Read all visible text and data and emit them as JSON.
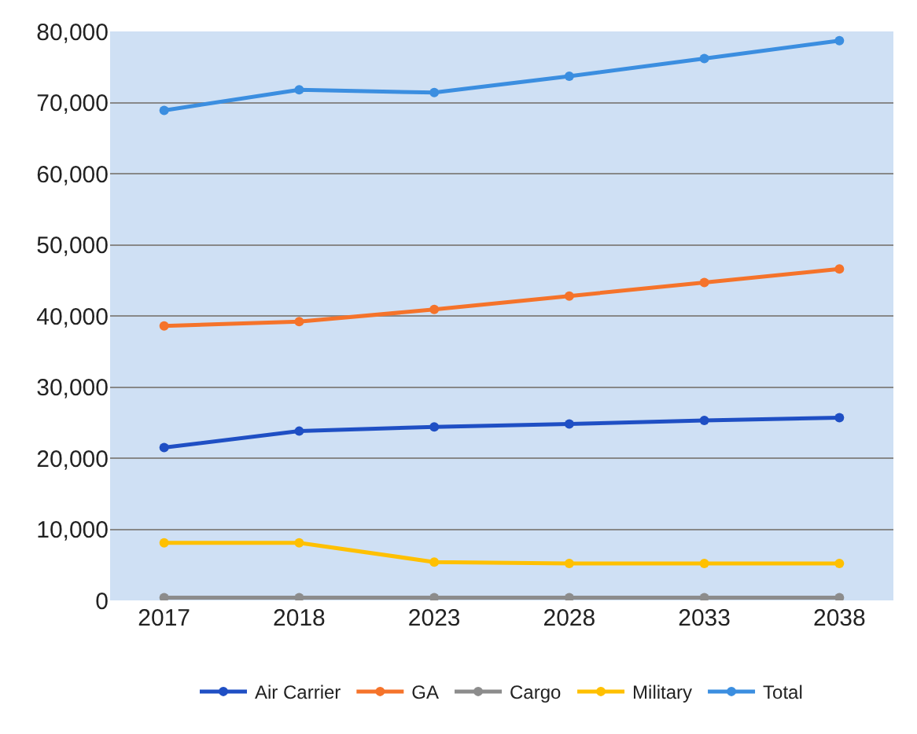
{
  "chart_data": {
    "type": "line",
    "categories": [
      "2017",
      "2018",
      "2023",
      "2028",
      "2033",
      "2038"
    ],
    "series": [
      {
        "name": "Air Carrier",
        "color": "#1f4fc4",
        "values": [
          21500,
          23800,
          24400,
          24800,
          25300,
          25700
        ]
      },
      {
        "name": "GA",
        "color": "#f5732a",
        "values": [
          38600,
          39200,
          40900,
          42800,
          44700,
          46600
        ]
      },
      {
        "name": "Cargo",
        "color": "#8c8c8c",
        "values": [
          400,
          400,
          400,
          400,
          400,
          400
        ]
      },
      {
        "name": "Military",
        "color": "#ffc000",
        "values": [
          8100,
          8100,
          5400,
          5200,
          5200,
          5200
        ]
      },
      {
        "name": "Total",
        "color": "#3b8ee0",
        "values": [
          68900,
          71800,
          71400,
          73700,
          76200,
          78700
        ]
      }
    ],
    "ylim": [
      0,
      80000
    ],
    "yticks": [
      {
        "value": 0,
        "label": "0"
      },
      {
        "value": 10000,
        "label": "10,000"
      },
      {
        "value": 20000,
        "label": "20,000"
      },
      {
        "value": 30000,
        "label": "30,000"
      },
      {
        "value": 40000,
        "label": "40,000"
      },
      {
        "value": 50000,
        "label": "50,000"
      },
      {
        "value": 60000,
        "label": "60,000"
      },
      {
        "value": 70000,
        "label": "70,000"
      },
      {
        "value": 80000,
        "label": "80,000"
      }
    ],
    "grid": "y",
    "legend": "bottom",
    "marker": "circle",
    "line_style": "solid"
  }
}
